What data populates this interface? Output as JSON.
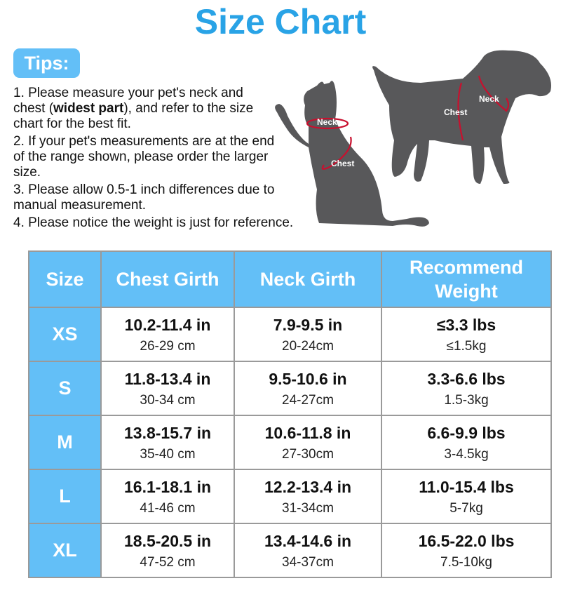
{
  "title": "Size Chart",
  "tips": {
    "label": "Tips:",
    "items": [
      {
        "before": "1. Please measure your pet's neck and chest (",
        "bold": "widest part",
        "after": "), and refer to the size chart for the best fit."
      },
      {
        "before": "2. If your pet's measurements are at the end of the range shown, please order the larger size.",
        "bold": "",
        "after": ""
      },
      {
        "before": "3. Please allow 0.5-1 inch differences due to manual measurement.",
        "bold": "",
        "after": ""
      },
      {
        "before": "4. Please notice the weight is just for reference.",
        "bold": "",
        "after": ""
      }
    ]
  },
  "illustration": {
    "cat": {
      "neck_label": "Neck",
      "chest_label": "Chest"
    },
    "dog": {
      "neck_label": "Neck",
      "chest_label": "Chest"
    },
    "silhouette_color": "#58585a",
    "measure_color": "#c8102e"
  },
  "table": {
    "headers": [
      "Size",
      "Chest Girth",
      "Neck Girth",
      "Recommend Weight"
    ],
    "rows": [
      {
        "size": "XS",
        "chest_in": "10.2-11.4 in",
        "chest_cm": "26-29 cm",
        "neck_in": "7.9-9.5 in",
        "neck_cm": "20-24cm",
        "weight_lbs": "≤3.3 lbs",
        "weight_kg": "≤1.5kg"
      },
      {
        "size": "S",
        "chest_in": "11.8-13.4 in",
        "chest_cm": "30-34 cm",
        "neck_in": "9.5-10.6 in",
        "neck_cm": "24-27cm",
        "weight_lbs": "3.3-6.6 lbs",
        "weight_kg": "1.5-3kg"
      },
      {
        "size": "M",
        "chest_in": "13.8-15.7 in",
        "chest_cm": "35-40 cm",
        "neck_in": "10.6-11.8 in",
        "neck_cm": "27-30cm",
        "weight_lbs": "6.6-9.9 lbs",
        "weight_kg": "3-4.5kg"
      },
      {
        "size": "L",
        "chest_in": "16.1-18.1 in",
        "chest_cm": "41-46 cm",
        "neck_in": "12.2-13.4 in",
        "neck_cm": "31-34cm",
        "weight_lbs": "11.0-15.4 lbs",
        "weight_kg": "5-7kg"
      },
      {
        "size": "XL",
        "chest_in": "18.5-20.5 in",
        "chest_cm": "47-52 cm",
        "neck_in": "13.4-14.6 in",
        "neck_cm": "34-37cm",
        "weight_lbs": "16.5-22.0 lbs",
        "weight_kg": "7.5-10kg"
      }
    ]
  }
}
